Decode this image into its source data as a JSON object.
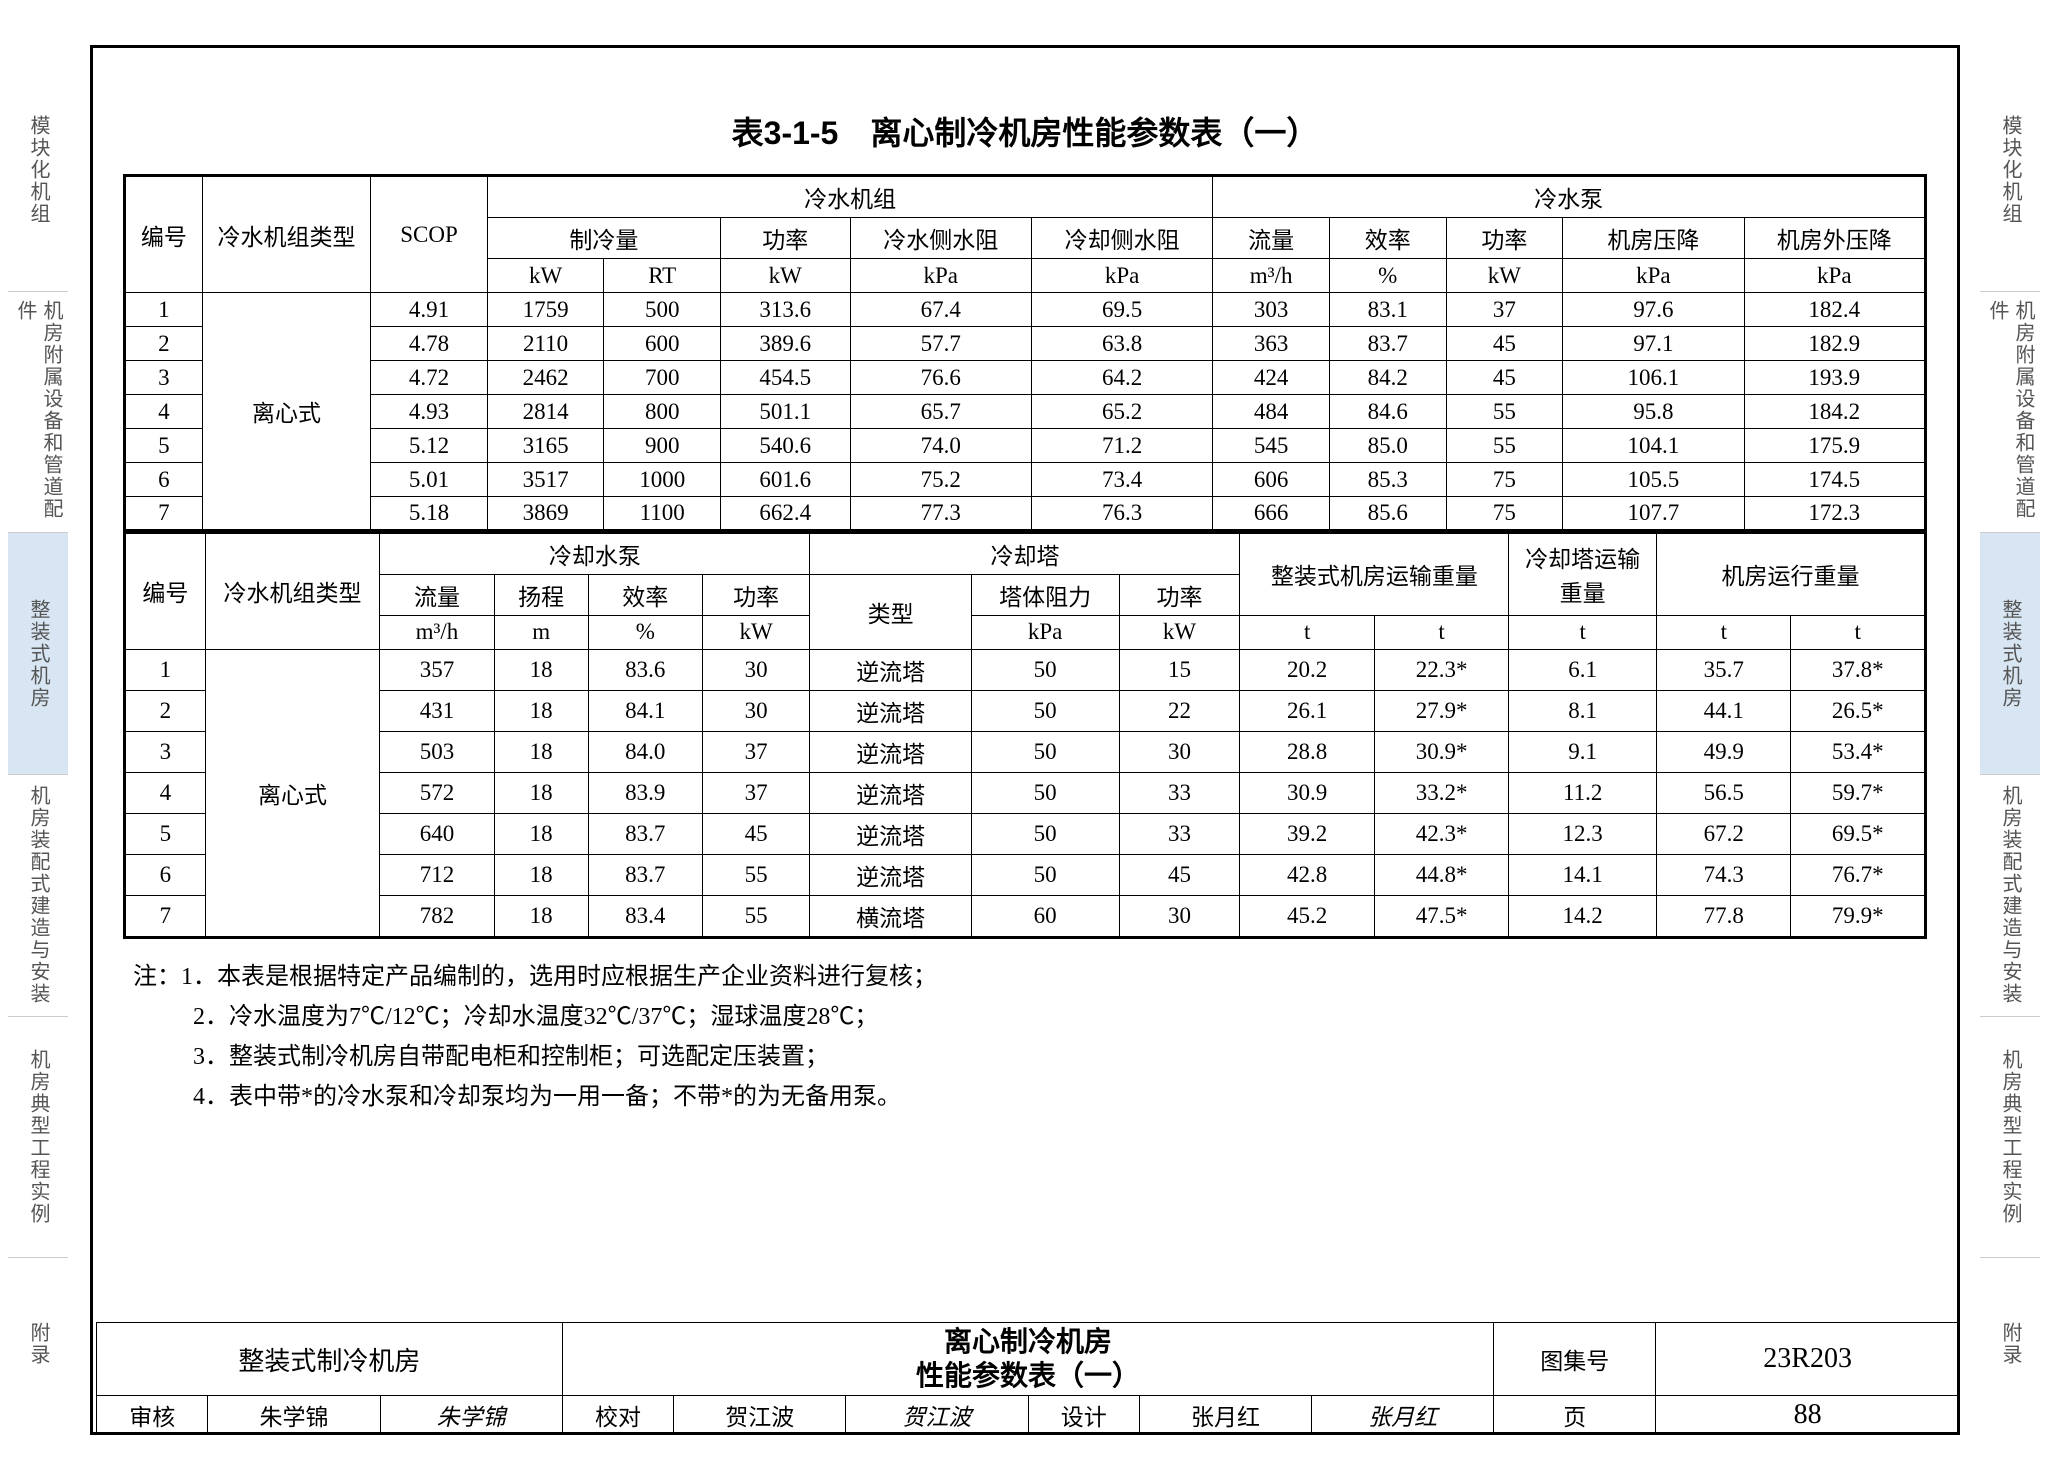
{
  "nav": {
    "items": [
      {
        "label": "模块化机组",
        "active": false,
        "size": "tall"
      },
      {
        "label": "机房附属设备和管道配件",
        "active": false,
        "size": "tall"
      },
      {
        "label": "整装式机房",
        "active": true,
        "size": "tall"
      },
      {
        "label": "机房装配式建造与安装",
        "active": false,
        "size": "tall"
      },
      {
        "label": "机房典型工程实例",
        "active": false,
        "size": "tall"
      },
      {
        "label": "附录",
        "active": false,
        "size": "short"
      }
    ]
  },
  "title": "表3-1-5　离心制冷机房性能参数表（一）",
  "table1": {
    "group_chiller": "冷水机组",
    "group_pump": "冷水泵",
    "h_no": "编号",
    "h_type": "冷水机组类型",
    "h_scop": "SCOP",
    "h_capacity": "制冷量",
    "h_power": "功率",
    "h_chw_dp": "冷水侧水阻",
    "h_cw_dp": "冷却侧水阻",
    "h_flow": "流量",
    "h_eff": "效率",
    "h_ppower": "功率",
    "h_room_dp": "机房压降",
    "h_ext_dp": "机房外压降",
    "u_kw": "kW",
    "u_rt": "RT",
    "u_kpa": "kPa",
    "u_m3h": "m³/h",
    "u_pct": "%",
    "type_label": "离心式",
    "rows": [
      [
        "1",
        "4.91",
        "1759",
        "500",
        "313.6",
        "67.4",
        "69.5",
        "303",
        "83.1",
        "37",
        "97.6",
        "182.4"
      ],
      [
        "2",
        "4.78",
        "2110",
        "600",
        "389.6",
        "57.7",
        "63.8",
        "363",
        "83.7",
        "45",
        "97.1",
        "182.9"
      ],
      [
        "3",
        "4.72",
        "2462",
        "700",
        "454.5",
        "76.6",
        "64.2",
        "424",
        "84.2",
        "45",
        "106.1",
        "193.9"
      ],
      [
        "4",
        "4.93",
        "2814",
        "800",
        "501.1",
        "65.7",
        "65.2",
        "484",
        "84.6",
        "55",
        "95.8",
        "184.2"
      ],
      [
        "5",
        "5.12",
        "3165",
        "900",
        "540.6",
        "74.0",
        "71.2",
        "545",
        "85.0",
        "55",
        "104.1",
        "175.9"
      ],
      [
        "6",
        "5.01",
        "3517",
        "1000",
        "601.6",
        "75.2",
        "73.4",
        "606",
        "85.3",
        "75",
        "105.5",
        "174.5"
      ],
      [
        "7",
        "5.18",
        "3869",
        "1100",
        "662.4",
        "77.3",
        "76.3",
        "666",
        "85.6",
        "75",
        "107.7",
        "172.3"
      ]
    ]
  },
  "table2": {
    "group_cpump": "冷却水泵",
    "group_tower": "冷却塔",
    "group_trans": "整装式机房运输重量",
    "group_tower_trans": "冷却塔运输重量",
    "group_run": "机房运行重量",
    "h_no": "编号",
    "h_type": "冷水机组类型",
    "h_flow": "流量",
    "h_head": "扬程",
    "h_eff": "效率",
    "h_power": "功率",
    "h_ttype": "类型",
    "h_tdp": "塔体阻力",
    "h_tpower": "功率",
    "u_m3h": "m³/h",
    "u_m": "m",
    "u_pct": "%",
    "u_kw": "kW",
    "u_kpa": "kPa",
    "u_t": "t",
    "type_label": "离心式",
    "rows": [
      [
        "1",
        "357",
        "18",
        "83.6",
        "30",
        "逆流塔",
        "50",
        "15",
        "20.2",
        "22.3*",
        "6.1",
        "35.7",
        "37.8*"
      ],
      [
        "2",
        "431",
        "18",
        "84.1",
        "30",
        "逆流塔",
        "50",
        "22",
        "26.1",
        "27.9*",
        "8.1",
        "44.1",
        "26.5*"
      ],
      [
        "3",
        "503",
        "18",
        "84.0",
        "37",
        "逆流塔",
        "50",
        "30",
        "28.8",
        "30.9*",
        "9.1",
        "49.9",
        "53.4*"
      ],
      [
        "4",
        "572",
        "18",
        "83.9",
        "37",
        "逆流塔",
        "50",
        "33",
        "30.9",
        "33.2*",
        "11.2",
        "56.5",
        "59.7*"
      ],
      [
        "5",
        "640",
        "18",
        "83.7",
        "45",
        "逆流塔",
        "50",
        "33",
        "39.2",
        "42.3*",
        "12.3",
        "67.2",
        "69.5*"
      ],
      [
        "6",
        "712",
        "18",
        "83.7",
        "55",
        "逆流塔",
        "50",
        "45",
        "42.8",
        "44.8*",
        "14.1",
        "74.3",
        "76.7*"
      ],
      [
        "7",
        "782",
        "18",
        "83.4",
        "55",
        "横流塔",
        "60",
        "30",
        "45.2",
        "47.5*",
        "14.2",
        "77.8",
        "79.9*"
      ]
    ]
  },
  "notes": {
    "prefix": "注：",
    "n1": "1．本表是根据特定产品编制的，选用时应根据生产企业资料进行复核；",
    "n2": "2．冷水温度为7℃/12℃；冷却水温度32℃/37℃；湿球温度28℃；",
    "n3": "3．整装式制冷机房自带配电柜和控制柜；可选配定压装置；",
    "n4": "4．表中带*的冷水泵和冷却泵均为一用一备；不带*的为无备用泵。"
  },
  "footer": {
    "left_title": "整装式制冷机房",
    "center_title1": "离心制冷机房",
    "center_title2": "性能参数表（一）",
    "atlas_label": "图集号",
    "atlas_no": "23R203",
    "review_label": "审核",
    "review_name": "朱学锦",
    "review_sig": "朱学锦",
    "check_label": "校对",
    "check_name": "贺江波",
    "check_sig": "贺江波",
    "design_label": "设计",
    "design_name": "张月红",
    "design_sig": "张月红",
    "page_label": "页",
    "page_no": "88"
  }
}
